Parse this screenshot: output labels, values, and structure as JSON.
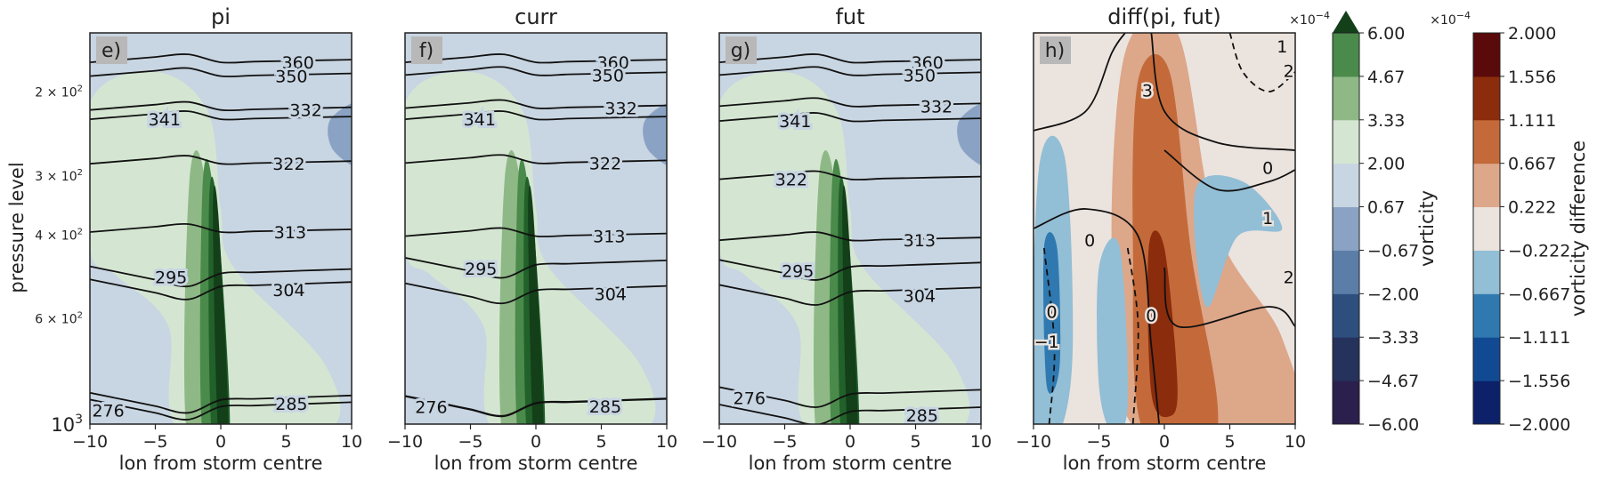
{
  "chart_data": {
    "type": "contour",
    "ylabel": "pressure level",
    "xlabel": "lon from storm centre",
    "x_ticks": [
      -10,
      -5,
      0,
      5,
      10
    ],
    "xlim": [
      -10,
      10
    ],
    "y_scale": "log",
    "ylim": [
      1000,
      150
    ],
    "y_tick_labels": [
      {
        "base": "10",
        "exp": "3",
        "value": 1000
      },
      {
        "base": "6 × 10",
        "exp": "2",
        "value": 600
      },
      {
        "base": "4 × 10",
        "exp": "2",
        "value": 400
      },
      {
        "base": "3 × 10",
        "exp": "2",
        "value": 300
      },
      {
        "base": "2 × 10",
        "exp": "2",
        "value": 200
      }
    ],
    "panels": [
      {
        "title": "pi",
        "tag": "e)",
        "theta_contours": [
          {
            "label": "360",
            "lon": 5.9,
            "p": 173
          },
          {
            "label": "350",
            "lon": 5.4,
            "p": 185
          },
          {
            "label": "341",
            "lon": -4.3,
            "p": 228
          },
          {
            "label": "332",
            "lon": 6.5,
            "p": 218
          },
          {
            "label": "322",
            "lon": 5.2,
            "p": 283
          },
          {
            "label": "313",
            "lon": 5.3,
            "p": 394
          },
          {
            "label": "304",
            "lon": 5.2,
            "p": 522
          },
          {
            "label": "295",
            "lon": -3.8,
            "p": 490
          },
          {
            "label": "285",
            "lon": 5.4,
            "p": 905
          },
          {
            "label": "276",
            "lon": -8.6,
            "p": 935
          }
        ]
      },
      {
        "title": "curr",
        "tag": "f)",
        "theta_contours": [
          {
            "label": "360",
            "lon": 5.9,
            "p": 173
          },
          {
            "label": "350",
            "lon": 5.5,
            "p": 184
          },
          {
            "label": "341",
            "lon": -4.3,
            "p": 228
          },
          {
            "label": "332",
            "lon": 6.5,
            "p": 216
          },
          {
            "label": "322",
            "lon": 5.3,
            "p": 282
          },
          {
            "label": "313",
            "lon": 5.6,
            "p": 402
          },
          {
            "label": "304",
            "lon": 5.7,
            "p": 532
          },
          {
            "label": "295",
            "lon": -4.2,
            "p": 470
          },
          {
            "label": "285",
            "lon": 5.3,
            "p": 918
          },
          {
            "label": "276",
            "lon": -8.0,
            "p": 920
          }
        ]
      },
      {
        "title": "fut",
        "tag": "g)",
        "theta_contours": [
          {
            "label": "360",
            "lon": 5.9,
            "p": 173
          },
          {
            "label": "350",
            "lon": 5.3,
            "p": 184
          },
          {
            "label": "341",
            "lon": -4.2,
            "p": 230
          },
          {
            "label": "332",
            "lon": 6.6,
            "p": 214
          },
          {
            "label": "322",
            "lon": -4.5,
            "p": 305
          },
          {
            "label": "313",
            "lon": 5.3,
            "p": 410
          },
          {
            "label": "304",
            "lon": 5.3,
            "p": 536
          },
          {
            "label": "295",
            "lon": -4.0,
            "p": 475
          },
          {
            "label": "285",
            "lon": 5.5,
            "p": 958
          },
          {
            "label": "276",
            "lon": -7.7,
            "p": 880
          }
        ]
      },
      {
        "title": "diff(pi, fut)",
        "tag": "h)",
        "diff_contours": [
          {
            "label": "0",
            "lon": 7.9,
            "p": 288
          },
          {
            "label": "1",
            "lon": 7.9,
            "p": 368
          },
          {
            "label": "2",
            "lon": 9.5,
            "p": 490
          },
          {
            "label": "3",
            "lon": -1.3,
            "p": 198
          },
          {
            "label": "2",
            "lon": 9.5,
            "p": 180
          },
          {
            "label": "1",
            "lon": 9.0,
            "p": 160
          },
          {
            "label": "0",
            "lon": -5.7,
            "p": 410
          },
          {
            "label": "0",
            "lon": -8.6,
            "p": 580
          },
          {
            "label": "0",
            "lon": -1.0,
            "p": 590
          },
          {
            "label": "−1",
            "lon": -9.0,
            "p": 670
          }
        ]
      }
    ],
    "colorbars": [
      {
        "label": "vorticity",
        "multiplier_base": "×10",
        "multiplier_exp": "−4",
        "ticks": [
          "−6.00",
          "−4.67",
          "−3.33",
          "−2.00",
          "−0.67",
          "0.67",
          "2.00",
          "3.33",
          "4.67",
          "6.00"
        ],
        "extend": "max",
        "colors": [
          "#2b1f4e",
          "#25325c",
          "#2e4e7e",
          "#5b7ea8",
          "#8aa3c4",
          "#c8d5e2",
          "#d4e6d2",
          "#8fb887",
          "#4a8a4a",
          "#22612a",
          "#133f19"
        ]
      },
      {
        "label": "vorticity difference",
        "multiplier_base": "×10",
        "multiplier_exp": "−4",
        "ticks": [
          "−2.000",
          "−1.556",
          "−1.111",
          "−0.667",
          "−0.222",
          "0.222",
          "0.667",
          "1.111",
          "1.556",
          "2.000"
        ],
        "colors": [
          "#0c2169",
          "#114a93",
          "#2f79b0",
          "#92bed6",
          "#ebe3de",
          "#dda78a",
          "#c46a3a",
          "#8b2c0c",
          "#5a0a0a"
        ]
      }
    ]
  }
}
